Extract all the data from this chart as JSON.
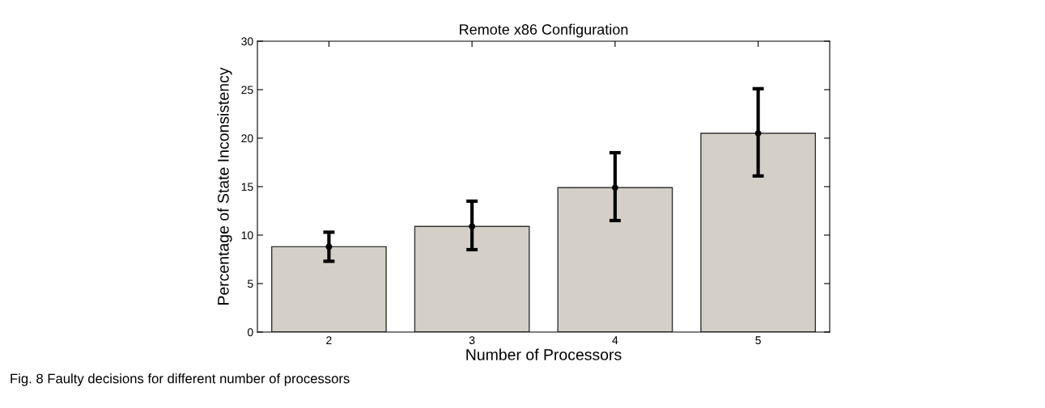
{
  "chart_data": {
    "type": "bar",
    "title": "Remote x86 Configuration",
    "xlabel": "Number of Processors",
    "ylabel": "Percentage of State Inconsistency",
    "categories": [
      "2",
      "3",
      "4",
      "5"
    ],
    "series": [
      {
        "color": "#d4d0c8",
        "values": [
          8.8,
          10.9,
          14.9,
          20.5
        ]
      },
      {
        "type": "scatter",
        "color": "#000000",
        "marker": "circle",
        "x": [
          "2",
          "3",
          "4",
          "5"
        ],
        "values": [
          8.8,
          10.9,
          14.9,
          20.5
        ],
        "errors": [
          [
            7.3,
            10.3
          ],
          [
            8.5,
            13.5
          ],
          [
            11.5,
            18.5
          ],
          [
            16.1,
            25.1
          ]
        ]
      }
    ],
    "ylim": [
      0,
      30
    ],
    "yticks": [
      0,
      5,
      10,
      15,
      20,
      25,
      30
    ],
    "grid": false,
    "annotations": [
      "Fig. 8 Faulty decisions for different number of processors"
    ]
  }
}
